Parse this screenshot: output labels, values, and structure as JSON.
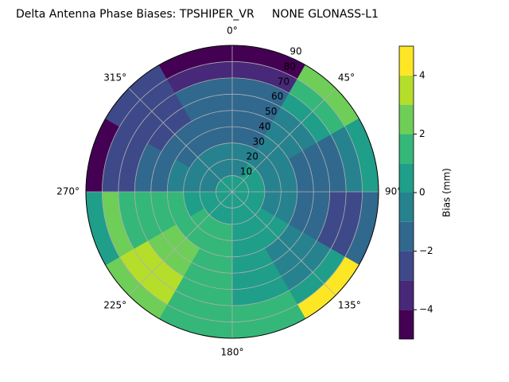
{
  "chart_data": {
    "type": "polar_contour",
    "title": "Delta Antenna Phase Biases: TPSHIPER_VR     NONE GLONASS-L1",
    "azimuth_bins": [
      0,
      30,
      60,
      90,
      120,
      150,
      180,
      210,
      240,
      270,
      300,
      330,
      360
    ],
    "zenith_bins": [
      0,
      10,
      20,
      30,
      40,
      50,
      60,
      70,
      80,
      90
    ],
    "values": [
      [
        0.5,
        0.5,
        0.5,
        0.5,
        0.5,
        0.5,
        0.5,
        0.5,
        0.5,
        0.5,
        0.5,
        0.5
      ],
      [
        0,
        0.5,
        0.5,
        0.5,
        0.5,
        1,
        1,
        1,
        0.5,
        0,
        0,
        0
      ],
      [
        -0.5,
        0,
        0,
        0,
        0.5,
        1,
        1.5,
        1.5,
        1,
        0,
        -0.5,
        -0.5
      ],
      [
        -1,
        -0.5,
        -0.5,
        -0.5,
        0.5,
        1,
        2,
        2,
        1.5,
        -0.5,
        -1,
        -1
      ],
      [
        -1.5,
        -0.5,
        -1,
        -1,
        0,
        1,
        2,
        2.5,
        1.5,
        -1,
        -1.5,
        -1.5
      ],
      [
        -1.5,
        0,
        -1.5,
        -1.5,
        -0.5,
        0.5,
        1.5,
        3,
        1.5,
        -1.5,
        -2.5,
        -1.5
      ],
      [
        -1.5,
        0.5,
        -1.5,
        -2,
        -0.5,
        0.5,
        1.5,
        3.5,
        2,
        -2,
        -2.5,
        -1.5
      ],
      [
        -3,
        1.5,
        -0.5,
        -2,
        0.5,
        1.5,
        1.5,
        4,
        2.5,
        -2.5,
        -2.5,
        -3
      ],
      [
        -4.5,
        2.5,
        0.5,
        -1.5,
        4.5,
        2,
        1.5,
        3,
        1,
        -4,
        -2.5,
        -4
      ]
    ],
    "rlim": [
      0,
      90
    ],
    "rticks": [
      10,
      20,
      30,
      40,
      50,
      60,
      70,
      80,
      90
    ],
    "theta_ticks": [
      {
        "value": 0,
        "label": "0°"
      },
      {
        "value": 45,
        "label": "45°"
      },
      {
        "value": 90,
        "label": "90°"
      },
      {
        "value": 135,
        "label": "135°"
      },
      {
        "value": 180,
        "label": "180°"
      },
      {
        "value": 225,
        "label": "225°"
      },
      {
        "value": 270,
        "label": "270°"
      },
      {
        "value": 315,
        "label": "315°"
      }
    ],
    "grid": true,
    "colorbar": {
      "label": "Bias (mm)",
      "levels": [
        -5,
        -4,
        -3,
        -2,
        -1,
        0,
        1,
        2,
        3,
        4,
        5
      ],
      "colors": [
        "#440154",
        "#482878",
        "#3e4989",
        "#31688e",
        "#26828e",
        "#1f9e89",
        "#35b779",
        "#6ece58",
        "#b5de2b",
        "#fde725"
      ],
      "ticks": [
        {
          "value": -4,
          "label": "−4"
        },
        {
          "value": -2,
          "label": "−2"
        },
        0,
        2,
        4
      ]
    }
  }
}
